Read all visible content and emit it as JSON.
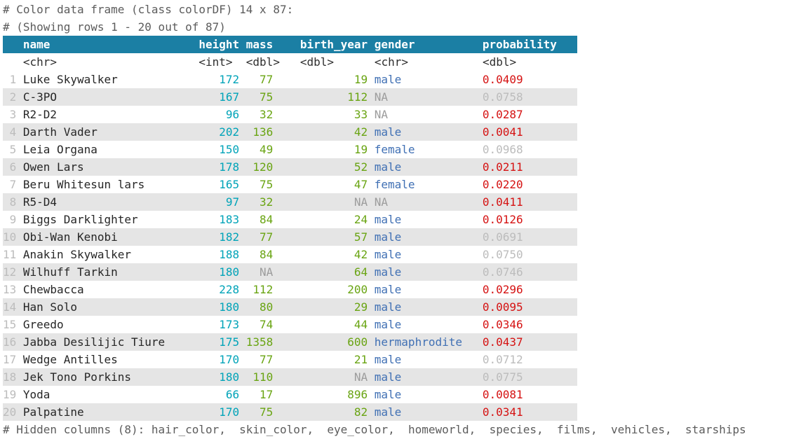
{
  "console": {
    "line1": "# Color data frame (class colorDF) 14 x 87:",
    "line2": "# (Showing rows 1 - 20 out of 87)",
    "footer": "# Hidden columns (8): hair_color,  skin_color,  eye_color,  homeworld,  species,  films,  vehicles,  starships"
  },
  "table": {
    "significance_threshold": 0.05,
    "columns": [
      {
        "key": "name",
        "label": "name",
        "type": "<chr>"
      },
      {
        "key": "height",
        "label": "height",
        "type": "<int>"
      },
      {
        "key": "mass",
        "label": "mass",
        "type": "<dbl>"
      },
      {
        "key": "birth_year",
        "label": "birth_year",
        "type": "<dbl>"
      },
      {
        "key": "gender",
        "label": "gender",
        "type": "<chr>"
      },
      {
        "key": "probability",
        "label": "probability",
        "type": "<dbl>"
      }
    ],
    "rows": [
      {
        "n": "1",
        "name": "Luke Skywalker",
        "height": "172",
        "mass": "77",
        "birth_year": "19",
        "gender": "male",
        "probability": "0.0409"
      },
      {
        "n": "2",
        "name": "C-3PO",
        "height": "167",
        "mass": "75",
        "birth_year": "112",
        "gender": "NA",
        "probability": "0.0758"
      },
      {
        "n": "3",
        "name": "R2-D2",
        "height": "96",
        "mass": "32",
        "birth_year": "33",
        "gender": "NA",
        "probability": "0.0287"
      },
      {
        "n": "4",
        "name": "Darth Vader",
        "height": "202",
        "mass": "136",
        "birth_year": "42",
        "gender": "male",
        "probability": "0.0041"
      },
      {
        "n": "5",
        "name": "Leia Organa",
        "height": "150",
        "mass": "49",
        "birth_year": "19",
        "gender": "female",
        "probability": "0.0968"
      },
      {
        "n": "6",
        "name": "Owen Lars",
        "height": "178",
        "mass": "120",
        "birth_year": "52",
        "gender": "male",
        "probability": "0.0211"
      },
      {
        "n": "7",
        "name": "Beru Whitesun lars",
        "height": "165",
        "mass": "75",
        "birth_year": "47",
        "gender": "female",
        "probability": "0.0220"
      },
      {
        "n": "8",
        "name": "R5-D4",
        "height": "97",
        "mass": "32",
        "birth_year": "NA",
        "gender": "NA",
        "probability": "0.0411"
      },
      {
        "n": "9",
        "name": "Biggs Darklighter",
        "height": "183",
        "mass": "84",
        "birth_year": "24",
        "gender": "male",
        "probability": "0.0126"
      },
      {
        "n": "10",
        "name": "Obi-Wan Kenobi",
        "height": "182",
        "mass": "77",
        "birth_year": "57",
        "gender": "male",
        "probability": "0.0691"
      },
      {
        "n": "11",
        "name": "Anakin Skywalker",
        "height": "188",
        "mass": "84",
        "birth_year": "42",
        "gender": "male",
        "probability": "0.0750"
      },
      {
        "n": "12",
        "name": "Wilhuff Tarkin",
        "height": "180",
        "mass": "NA",
        "birth_year": "64",
        "gender": "male",
        "probability": "0.0746"
      },
      {
        "n": "13",
        "name": "Chewbacca",
        "height": "228",
        "mass": "112",
        "birth_year": "200",
        "gender": "male",
        "probability": "0.0296"
      },
      {
        "n": "14",
        "name": "Han Solo",
        "height": "180",
        "mass": "80",
        "birth_year": "29",
        "gender": "male",
        "probability": "0.0095"
      },
      {
        "n": "15",
        "name": "Greedo",
        "height": "173",
        "mass": "74",
        "birth_year": "44",
        "gender": "male",
        "probability": "0.0346"
      },
      {
        "n": "16",
        "name": "Jabba Desilijic Tiure",
        "height": "175",
        "mass": "1358",
        "birth_year": "600",
        "gender": "hermaphrodite",
        "probability": "0.0437"
      },
      {
        "n": "17",
        "name": "Wedge Antilles",
        "height": "170",
        "mass": "77",
        "birth_year": "21",
        "gender": "male",
        "probability": "0.0712"
      },
      {
        "n": "18",
        "name": "Jek Tono Porkins",
        "height": "180",
        "mass": "110",
        "birth_year": "NA",
        "gender": "male",
        "probability": "0.0775"
      },
      {
        "n": "19",
        "name": "Yoda",
        "height": "66",
        "mass": "17",
        "birth_year": "896",
        "gender": "male",
        "probability": "0.0081"
      },
      {
        "n": "20",
        "name": "Palpatine",
        "height": "170",
        "mass": "75",
        "birth_year": "82",
        "gender": "male",
        "probability": "0.0341"
      }
    ]
  },
  "colors": {
    "header_bg": "#1b7fa4",
    "header_text": "#ffffff",
    "comment": "#5c5c5c",
    "rownum": "#bcbcbc",
    "stripe": "#e5e5e5",
    "name_text": "#262626",
    "type_text": "#2e2e2e",
    "int_value": "#00a3b8",
    "dbl_value": "#69a412",
    "chr_value": "#4070b4",
    "na_value": "#9c9c9c",
    "prob_significant": "#d51212",
    "prob_nonsignificant": "#bcbcbc"
  }
}
